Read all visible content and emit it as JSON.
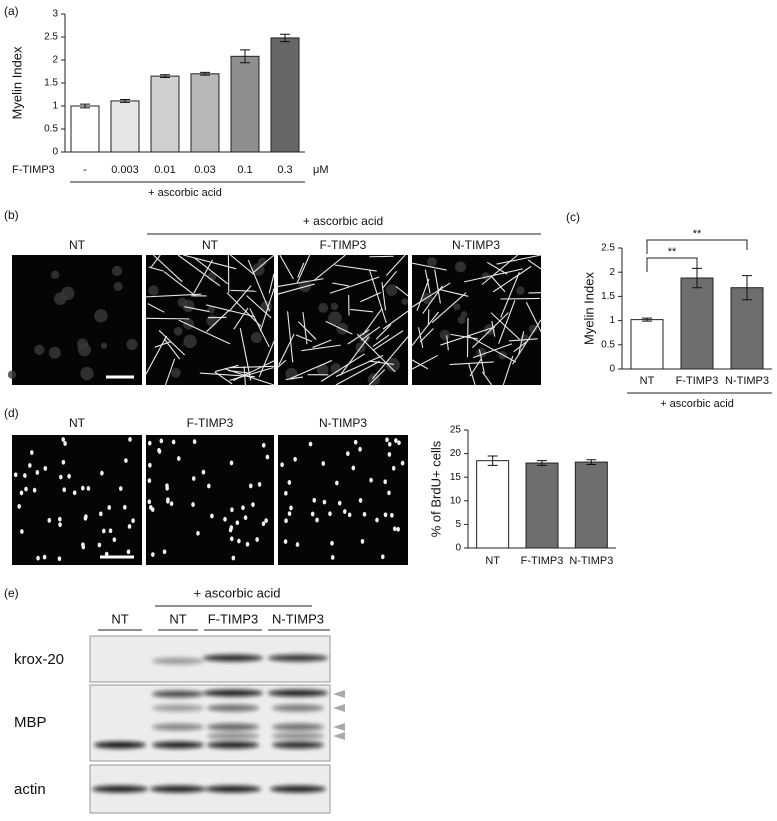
{
  "chart_data": [
    {
      "type": "bar",
      "y_label": "Myelin Index",
      "x_label": "F-TIMP3",
      "unit": "μM",
      "annotation": "+ ascorbic acid",
      "categories": [
        "-",
        "0.003",
        "0.01",
        "0.03",
        "0.1",
        "0.3"
      ],
      "values": [
        1.0,
        1.11,
        1.65,
        1.7,
        2.08,
        2.48
      ],
      "errors": [
        0.04,
        0.03,
        0.03,
        0.03,
        0.14,
        0.08
      ],
      "colors": [
        "#ffffff",
        "#e6e6e6",
        "#d0d0d0",
        "#b8b8b8",
        "#8e8e8e",
        "#666666"
      ],
      "ylim": [
        0,
        3
      ],
      "yticks": [
        0,
        0.5,
        1,
        1.5,
        2,
        2.5,
        3
      ]
    },
    {
      "type": "bar",
      "y_label": "Myelin Index",
      "annotation": "+ ascorbic acid",
      "significance": [
        "**",
        "**"
      ],
      "categories": [
        "NT",
        "F-TIMP3",
        "N-TIMP3"
      ],
      "values": [
        1.02,
        1.88,
        1.68
      ],
      "errors": [
        0.03,
        0.2,
        0.25
      ],
      "colors": [
        "#ffffff",
        "#6e6e6e",
        "#6e6e6e"
      ],
      "ylim": [
        0,
        2.5
      ],
      "yticks": [
        0,
        0.5,
        1,
        1.5,
        2,
        2.5
      ]
    },
    {
      "type": "bar",
      "y_label": "% of BrdU+ cells",
      "categories": [
        "NT",
        "F-TIMP3",
        "N-TIMP3"
      ],
      "values": [
        18.5,
        18.0,
        18.2
      ],
      "errors": [
        1.0,
        0.5,
        0.5
      ],
      "colors": [
        "#ffffff",
        "#6e6e6e",
        "#6e6e6e"
      ],
      "ylim": [
        0,
        25
      ],
      "yticks": [
        0,
        5,
        10,
        15,
        20,
        25
      ]
    }
  ],
  "figure": {
    "panel_labels": [
      "(a)",
      "(b)",
      "(c)",
      "(d)",
      "(e)"
    ],
    "b": {
      "group_label": "+ ascorbic acid",
      "image_labels": [
        "NT",
        "NT",
        "F-TIMP3",
        "N-TIMP3"
      ]
    },
    "d": {
      "image_labels": [
        "NT",
        "F-TIMP3",
        "N-TIMP3"
      ]
    },
    "e": {
      "group_label": "+ ascorbic acid",
      "lane_labels": [
        "NT",
        "NT",
        "F-TIMP3",
        "N-TIMP3"
      ],
      "row_labels": [
        "krox-20",
        "MBP",
        "actin"
      ]
    }
  }
}
